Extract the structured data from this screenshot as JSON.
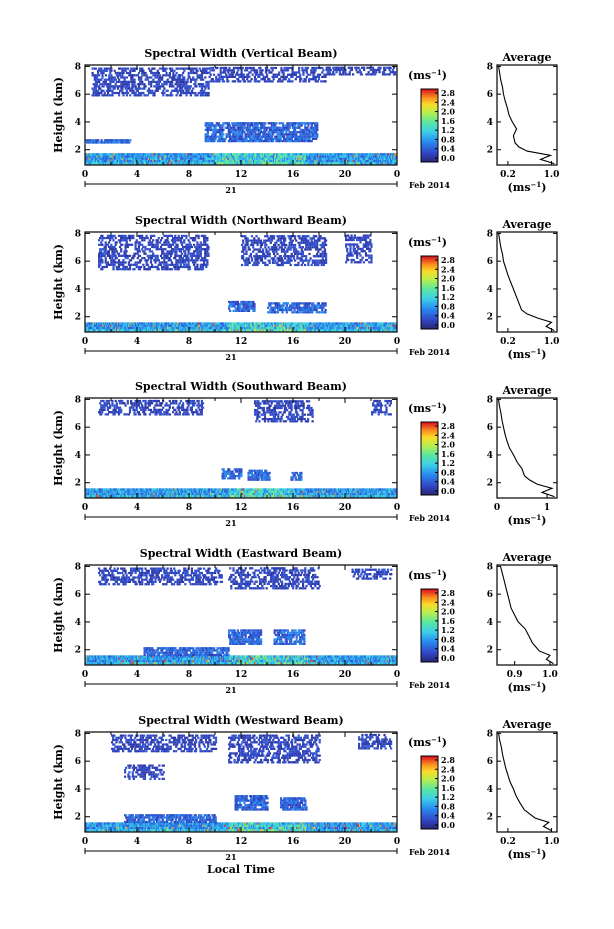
{
  "chart_data": [
    {
      "type": "heatmap",
      "title": "Spectral Width (Vertical Beam)",
      "ylabel": "Height (km)",
      "xlabel": "",
      "x_ticks": [
        "0",
        "4",
        "8",
        "12",
        "16",
        "20",
        "0"
      ],
      "y_ticks": [
        "2",
        "4",
        "6",
        "8"
      ],
      "date_day": "21",
      "date_label": "Feb 2014",
      "xlim": [
        0,
        24
      ],
      "ylim": [
        0.9,
        8.1
      ],
      "colorbar": {
        "unit": "(ms",
        "unit_exp": "−1",
        "unit_close": ")",
        "ticks": [
          "0.0",
          "0.4",
          "0.8",
          "1.2",
          "1.6",
          "2.0",
          "2.4",
          "2.8"
        ]
      },
      "average": {
        "title": "Average",
        "xlabel": "(ms",
        "xlabel_exp": "−1",
        "xlabel_close": ")",
        "x_ticks": [
          "0.2",
          "1.0"
        ],
        "x_tick_values": [
          0.2,
          1.0
        ],
        "xlim": [
          0.0,
          1.1
        ],
        "y_ticks": [
          "2",
          "4",
          "6",
          "8"
        ],
        "heights": [
          1.0,
          1.3,
          1.6,
          1.9,
          2.2,
          2.5,
          3.0,
          3.5,
          4.0,
          4.5,
          5.0,
          5.5,
          6.0,
          6.5,
          7.0,
          7.5,
          8.0
        ],
        "values": [
          1.05,
          0.8,
          0.98,
          0.55,
          0.4,
          0.33,
          0.3,
          0.36,
          0.28,
          0.22,
          0.19,
          0.15,
          0.12,
          0.1,
          0.07,
          0.05,
          0.03
        ]
      },
      "patches": {
        "boundary_layer": [
          [
            0,
            24,
            0.95,
            1.75
          ]
        ],
        "mid_cloud": [
          [
            9.2,
            17.8,
            2.7,
            4.0
          ],
          [
            0,
            3.5,
            2.6,
            2.9
          ]
        ],
        "upper": [
          [
            0.5,
            9.5,
            6.0,
            8.0
          ],
          [
            9.5,
            18.5,
            7.0,
            8.0
          ],
          [
            18.5,
            24,
            7.5,
            8.0
          ]
        ],
        "hotspots": [
          [
            10,
            17
          ]
        ]
      }
    },
    {
      "type": "heatmap",
      "title": "Spectral Width (Northward Beam)",
      "ylabel": "Height (km)",
      "xlabel": "",
      "x_ticks": [
        "0",
        "4",
        "8",
        "12",
        "16",
        "20",
        "0"
      ],
      "y_ticks": [
        "2",
        "4",
        "6",
        "8"
      ],
      "date_day": "21",
      "date_label": "Feb 2014",
      "xlim": [
        0,
        24
      ],
      "ylim": [
        0.9,
        8.1
      ],
      "colorbar": {
        "unit": "(ms",
        "unit_exp": "−1",
        "unit_close": ")",
        "ticks": [
          "0.0",
          "0.4",
          "0.8",
          "1.2",
          "1.6",
          "2.0",
          "2.4",
          "2.8"
        ]
      },
      "average": {
        "title": "Average",
        "xlabel": "(ms",
        "xlabel_exp": "−1",
        "xlabel_close": ")",
        "x_ticks": [
          "0.2",
          "1.0"
        ],
        "x_tick_values": [
          0.2,
          1.0
        ],
        "xlim": [
          0.0,
          1.1
        ],
        "y_ticks": [
          "2",
          "4",
          "6",
          "8"
        ],
        "heights": [
          1.0,
          1.3,
          1.6,
          1.9,
          2.2,
          2.5,
          3.0,
          3.5,
          4.0,
          4.5,
          5.0,
          5.5,
          6.0,
          6.5,
          7.0,
          7.5,
          8.0
        ],
        "values": [
          1.05,
          0.9,
          1.0,
          0.75,
          0.55,
          0.45,
          0.4,
          0.35,
          0.3,
          0.25,
          0.2,
          0.16,
          0.12,
          0.1,
          0.07,
          0.05,
          0.03
        ]
      },
      "patches": {
        "boundary_layer": [
          [
            0,
            24,
            0.95,
            1.7
          ]
        ],
        "mid_cloud": [
          [
            11,
            13,
            2.5,
            3.3
          ],
          [
            14,
            18.5,
            2.4,
            3.2
          ]
        ],
        "upper": [
          [
            1,
            9.5,
            5.5,
            8.0
          ],
          [
            12,
            18.5,
            5.8,
            8.0
          ],
          [
            20,
            22,
            6.0,
            8.0
          ]
        ],
        "hotspots": [
          [
            11,
            17
          ]
        ]
      }
    },
    {
      "type": "heatmap",
      "title": "Spectral Width (Southward Beam)",
      "ylabel": "Height (km)",
      "xlabel": "",
      "x_ticks": [
        "0",
        "4",
        "8",
        "12",
        "16",
        "20",
        "0"
      ],
      "y_ticks": [
        "2",
        "4",
        "6",
        "8"
      ],
      "date_day": "21",
      "date_label": "Feb 2014",
      "xlim": [
        0,
        24
      ],
      "ylim": [
        0.9,
        8.1
      ],
      "colorbar": {
        "unit": "(ms",
        "unit_exp": "−1",
        "unit_close": ")",
        "ticks": [
          "0.0",
          "0.4",
          "0.8",
          "1.2",
          "1.6",
          "2.0",
          "2.4",
          "2.8"
        ]
      },
      "average": {
        "title": "Average",
        "xlabel": "(ms",
        "xlabel_exp": "−1",
        "xlabel_close": ")",
        "x_ticks": [
          "0",
          "1"
        ],
        "x_tick_values": [
          0,
          1
        ],
        "xlim": [
          0.0,
          1.2
        ],
        "y_ticks": [
          "2",
          "4",
          "6",
          "8"
        ],
        "heights": [
          1.0,
          1.3,
          1.6,
          1.9,
          2.2,
          2.5,
          3.0,
          3.5,
          4.0,
          4.5,
          5.0,
          5.5,
          6.0,
          6.5,
          7.0,
          7.5,
          8.0
        ],
        "values": [
          1.15,
          0.9,
          1.1,
          0.8,
          0.65,
          0.55,
          0.5,
          0.4,
          0.33,
          0.25,
          0.2,
          0.16,
          0.13,
          0.1,
          0.08,
          0.05,
          0.03
        ]
      },
      "patches": {
        "boundary_layer": [
          [
            0,
            24,
            0.95,
            1.7
          ]
        ],
        "mid_cloud": [
          [
            10.5,
            12,
            2.4,
            3.2
          ],
          [
            12.5,
            14.2,
            2.3,
            3.1
          ],
          [
            15.8,
            16.6,
            2.3,
            2.9
          ]
        ],
        "upper": [
          [
            1,
            9,
            7.0,
            8.0
          ],
          [
            13,
            17.5,
            6.5,
            8.0
          ],
          [
            22,
            23.5,
            7.0,
            8.0
          ]
        ],
        "hotspots": [
          [
            11,
            16
          ]
        ]
      }
    },
    {
      "type": "heatmap",
      "title": "Spectral Width (Eastward Beam)",
      "ylabel": "Height (km)",
      "xlabel": "",
      "x_ticks": [
        "0",
        "4",
        "8",
        "12",
        "16",
        "20",
        "0"
      ],
      "y_ticks": [
        "2",
        "4",
        "6",
        "8"
      ],
      "date_day": "21",
      "date_label": "Feb 2014",
      "xlim": [
        0,
        24
      ],
      "ylim": [
        0.9,
        8.1
      ],
      "colorbar": {
        "unit": "(ms",
        "unit_exp": "−1",
        "unit_close": ")",
        "ticks": [
          "0.0",
          "0.4",
          "0.8",
          "1.2",
          "1.6",
          "2.0",
          "2.4",
          "2.8"
        ]
      },
      "average": {
        "title": "Average",
        "xlabel": "(ms",
        "xlabel_exp": "−1",
        "xlabel_close": ")",
        "x_ticks": [
          "0.9",
          "1.0"
        ],
        "x_tick_values": [
          0.9,
          1.0
        ],
        "xlim": [
          0.85,
          1.02
        ],
        "y_ticks": [
          "2",
          "4",
          "6",
          "8"
        ],
        "heights": [
          1.0,
          1.3,
          1.6,
          1.9,
          2.2,
          2.5,
          3.0,
          3.5,
          4.0,
          4.5,
          5.0,
          5.5,
          6.0,
          6.5,
          7.0,
          7.5,
          8.0
        ],
        "values": [
          1.01,
          0.99,
          1.0,
          0.97,
          0.96,
          0.95,
          0.94,
          0.93,
          0.91,
          0.9,
          0.89,
          0.885,
          0.88,
          0.875,
          0.87,
          0.865,
          0.86
        ]
      },
      "patches": {
        "boundary_layer": [
          [
            0,
            24,
            0.95,
            1.7
          ]
        ],
        "mid_cloud": [
          [
            11,
            13.5,
            2.5,
            3.6
          ],
          [
            14.5,
            16.8,
            2.5,
            3.5
          ],
          [
            4.5,
            11,
            1.7,
            2.2
          ]
        ],
        "upper": [
          [
            1,
            10.5,
            6.8,
            8.0
          ],
          [
            11,
            18,
            6.5,
            8.0
          ],
          [
            20.5,
            23.5,
            7.2,
            8.0
          ]
        ],
        "hotspots": [
          [
            11,
            17
          ]
        ]
      }
    },
    {
      "type": "heatmap",
      "title": "Spectral Width (Westward Beam)",
      "ylabel": "Height (km)",
      "xlabel": "Local Time",
      "x_ticks": [
        "0",
        "4",
        "8",
        "12",
        "16",
        "20",
        "0"
      ],
      "y_ticks": [
        "2",
        "4",
        "6",
        "8"
      ],
      "date_day": "21",
      "date_label": "Feb 2014",
      "xlim": [
        0,
        24
      ],
      "ylim": [
        0.9,
        8.1
      ],
      "colorbar": {
        "unit": "(ms",
        "unit_exp": "−1",
        "unit_close": ")",
        "ticks": [
          "0.0",
          "0.4",
          "0.8",
          "1.2",
          "1.6",
          "2.0",
          "2.4",
          "2.8"
        ]
      },
      "average": {
        "title": "Average",
        "xlabel": "(ms",
        "xlabel_exp": "−1",
        "xlabel_close": ")",
        "x_ticks": [
          "0.2",
          "1.0"
        ],
        "x_tick_values": [
          0.2,
          1.0
        ],
        "xlim": [
          0.0,
          1.1
        ],
        "y_ticks": [
          "2",
          "4",
          "6",
          "8"
        ],
        "heights": [
          1.0,
          1.3,
          1.6,
          1.9,
          2.2,
          2.5,
          3.0,
          3.5,
          4.0,
          4.5,
          5.0,
          5.5,
          6.0,
          6.5,
          7.0,
          7.5,
          8.0
        ],
        "values": [
          1.0,
          0.85,
          0.95,
          0.7,
          0.6,
          0.5,
          0.42,
          0.35,
          0.3,
          0.24,
          0.2,
          0.16,
          0.13,
          0.1,
          0.08,
          0.05,
          0.03
        ]
      },
      "patches": {
        "boundary_layer": [
          [
            0,
            24,
            0.95,
            1.7
          ]
        ],
        "mid_cloud": [
          [
            11.5,
            14,
            2.6,
            3.6
          ],
          [
            15,
            17,
            2.6,
            3.5
          ],
          [
            3,
            10,
            1.7,
            2.3
          ]
        ],
        "upper": [
          [
            2,
            10,
            6.8,
            8.0
          ],
          [
            11,
            18,
            6.0,
            8.0
          ],
          [
            21,
            23.5,
            7.0,
            8.0
          ],
          [
            3,
            6,
            4.8,
            5.8
          ]
        ],
        "hotspots": [
          [
            11,
            17
          ]
        ]
      }
    }
  ]
}
